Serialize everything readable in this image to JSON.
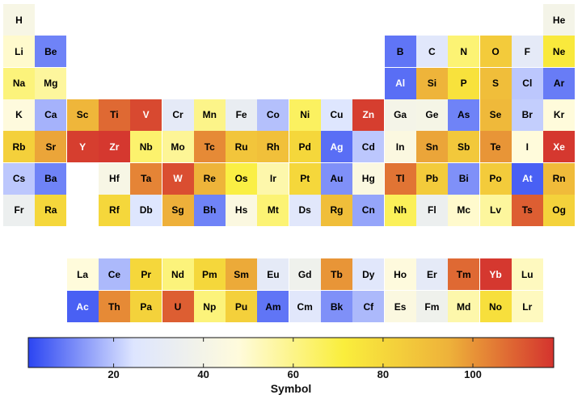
{
  "chart_data": {
    "type": "heatmap",
    "description_note": "",
    "legend_title": "Symbol",
    "colorbar": {
      "ticks": [
        20,
        40,
        60,
        80,
        100
      ],
      "range": [
        1,
        118
      ],
      "colors": [
        "#2b45f2",
        "#dde5ff",
        "#fffbdc",
        "#faee3c",
        "#eeb23a",
        "#d4332e"
      ]
    },
    "elements": [
      {
        "symbol": "H",
        "period": 1,
        "group": 1,
        "value": 42
      },
      {
        "symbol": "He",
        "period": 1,
        "group": 18,
        "value": 40
      },
      {
        "symbol": "Li",
        "period": 2,
        "group": 1,
        "value": 50
      },
      {
        "symbol": "Be",
        "period": 2,
        "group": 2,
        "value": 10
      },
      {
        "symbol": "B",
        "period": 2,
        "group": 13,
        "value": 8
      },
      {
        "symbol": "C",
        "period": 2,
        "group": 14,
        "value": 27
      },
      {
        "symbol": "N",
        "period": 2,
        "group": 15,
        "value": 63
      },
      {
        "symbol": "O",
        "period": 2,
        "group": 16,
        "value": 85
      },
      {
        "symbol": "F",
        "period": 2,
        "group": 17,
        "value": 30
      },
      {
        "symbol": "Ne",
        "period": 2,
        "group": 18,
        "value": 73
      },
      {
        "symbol": "Na",
        "period": 3,
        "group": 1,
        "value": 62
      },
      {
        "symbol": "Mg",
        "period": 3,
        "group": 2,
        "value": 57
      },
      {
        "symbol": "Al",
        "period": 3,
        "group": 13,
        "value": 7
      },
      {
        "symbol": "Si",
        "period": 3,
        "group": 14,
        "value": 94
      },
      {
        "symbol": "P",
        "period": 3,
        "group": 15,
        "value": 76
      },
      {
        "symbol": "S",
        "period": 3,
        "group": 16,
        "value": 90
      },
      {
        "symbol": "Cl",
        "period": 3,
        "group": 17,
        "value": 20
      },
      {
        "symbol": "Ar",
        "period": 3,
        "group": 18,
        "value": 9
      },
      {
        "symbol": "K",
        "period": 4,
        "group": 1,
        "value": 47
      },
      {
        "symbol": "Ca",
        "period": 4,
        "group": 2,
        "value": 17
      },
      {
        "symbol": "Sc",
        "period": 4,
        "group": 3,
        "value": 93
      },
      {
        "symbol": "Ti",
        "period": 4,
        "group": 4,
        "value": 108
      },
      {
        "symbol": "V",
        "period": 4,
        "group": 5,
        "value": 114
      },
      {
        "symbol": "Cr",
        "period": 4,
        "group": 6,
        "value": 30
      },
      {
        "symbol": "Mn",
        "period": 4,
        "group": 7,
        "value": 60
      },
      {
        "symbol": "Fe",
        "period": 4,
        "group": 8,
        "value": 33
      },
      {
        "symbol": "Co",
        "period": 4,
        "group": 9,
        "value": 19
      },
      {
        "symbol": "Ni",
        "period": 4,
        "group": 10,
        "value": 66
      },
      {
        "symbol": "Cu",
        "period": 4,
        "group": 11,
        "value": 25
      },
      {
        "symbol": "Zn",
        "period": 4,
        "group": 12,
        "value": 116
      },
      {
        "symbol": "Ga",
        "period": 4,
        "group": 13,
        "value": 40
      },
      {
        "symbol": "Ge",
        "period": 4,
        "group": 14,
        "value": 41
      },
      {
        "symbol": "As",
        "period": 4,
        "group": 15,
        "value": 10
      },
      {
        "symbol": "Se",
        "period": 4,
        "group": 16,
        "value": 92
      },
      {
        "symbol": "Br",
        "period": 4,
        "group": 17,
        "value": 21
      },
      {
        "symbol": "Kr",
        "period": 4,
        "group": 18,
        "value": 48
      },
      {
        "symbol": "Rb",
        "period": 5,
        "group": 1,
        "value": 83
      },
      {
        "symbol": "Sr",
        "period": 5,
        "group": 2,
        "value": 97
      },
      {
        "symbol": "Y",
        "period": 5,
        "group": 3,
        "value": 116
      },
      {
        "symbol": "Zr",
        "period": 5,
        "group": 4,
        "value": 117
      },
      {
        "symbol": "Nb",
        "period": 5,
        "group": 5,
        "value": 64
      },
      {
        "symbol": "Mo",
        "period": 5,
        "group": 6,
        "value": 58
      },
      {
        "symbol": "Tc",
        "period": 5,
        "group": 7,
        "value": 102
      },
      {
        "symbol": "Ru",
        "period": 5,
        "group": 8,
        "value": 87
      },
      {
        "symbol": "Rh",
        "period": 5,
        "group": 9,
        "value": 89
      },
      {
        "symbol": "Pd",
        "period": 5,
        "group": 10,
        "value": 80
      },
      {
        "symbol": "Ag",
        "period": 5,
        "group": 11,
        "value": 7
      },
      {
        "symbol": "Cd",
        "period": 5,
        "group": 12,
        "value": 20
      },
      {
        "symbol": "In",
        "period": 5,
        "group": 13,
        "value": 45
      },
      {
        "symbol": "Sn",
        "period": 5,
        "group": 14,
        "value": 97
      },
      {
        "symbol": "Sb",
        "period": 5,
        "group": 15,
        "value": 86
      },
      {
        "symbol": "Te",
        "period": 5,
        "group": 16,
        "value": 100
      },
      {
        "symbol": "I",
        "period": 5,
        "group": 17,
        "value": 48
      },
      {
        "symbol": "Xe",
        "period": 5,
        "group": 18,
        "value": 117
      },
      {
        "symbol": "Cs",
        "period": 6,
        "group": 1,
        "value": 20
      },
      {
        "symbol": "Ba",
        "period": 6,
        "group": 2,
        "value": 10
      },
      {
        "symbol": "Hf",
        "period": 6,
        "group": 4,
        "value": 42
      },
      {
        "symbol": "Ta",
        "period": 6,
        "group": 5,
        "value": 103
      },
      {
        "symbol": "W",
        "period": 6,
        "group": 6,
        "value": 113
      },
      {
        "symbol": "Re",
        "period": 6,
        "group": 7,
        "value": 94
      },
      {
        "symbol": "Os",
        "period": 6,
        "group": 8,
        "value": 70
      },
      {
        "symbol": "Ir",
        "period": 6,
        "group": 9,
        "value": 55
      },
      {
        "symbol": "Pt",
        "period": 6,
        "group": 10,
        "value": 80
      },
      {
        "symbol": "Au",
        "period": 6,
        "group": 11,
        "value": 12
      },
      {
        "symbol": "Hg",
        "period": 6,
        "group": 12,
        "value": 45
      },
      {
        "symbol": "Tl",
        "period": 6,
        "group": 13,
        "value": 106
      },
      {
        "symbol": "Pb",
        "period": 6,
        "group": 14,
        "value": 85
      },
      {
        "symbol": "Bi",
        "period": 6,
        "group": 15,
        "value": 12
      },
      {
        "symbol": "Po",
        "period": 6,
        "group": 16,
        "value": 85
      },
      {
        "symbol": "At",
        "period": 6,
        "group": 17,
        "value": 5
      },
      {
        "symbol": "Rn",
        "period": 6,
        "group": 18,
        "value": 91
      },
      {
        "symbol": "Fr",
        "period": 7,
        "group": 1,
        "value": 35
      },
      {
        "symbol": "Ra",
        "period": 7,
        "group": 2,
        "value": 80
      },
      {
        "symbol": "Rf",
        "period": 7,
        "group": 4,
        "value": 80
      },
      {
        "symbol": "Db",
        "period": 7,
        "group": 5,
        "value": 25
      },
      {
        "symbol": "Sg",
        "period": 7,
        "group": 6,
        "value": 95
      },
      {
        "symbol": "Bh",
        "period": 7,
        "group": 7,
        "value": 10
      },
      {
        "symbol": "Hs",
        "period": 7,
        "group": 8,
        "value": 45
      },
      {
        "symbol": "Mt",
        "period": 7,
        "group": 9,
        "value": 63
      },
      {
        "symbol": "Ds",
        "period": 7,
        "group": 10,
        "value": 27
      },
      {
        "symbol": "Rg",
        "period": 7,
        "group": 11,
        "value": 90
      },
      {
        "symbol": "Cn",
        "period": 7,
        "group": 12,
        "value": 15
      },
      {
        "symbol": "Nh",
        "period": 7,
        "group": 13,
        "value": 67
      },
      {
        "symbol": "Fl",
        "period": 7,
        "group": 14,
        "value": 35
      },
      {
        "symbol": "Mc",
        "period": 7,
        "group": 15,
        "value": 50
      },
      {
        "symbol": "Lv",
        "period": 7,
        "group": 16,
        "value": 57
      },
      {
        "symbol": "Ts",
        "period": 7,
        "group": 17,
        "value": 110
      },
      {
        "symbol": "Og",
        "period": 7,
        "group": 18,
        "value": 82
      },
      {
        "symbol": "La",
        "period": 8,
        "group": 3,
        "value": 48
      },
      {
        "symbol": "Ce",
        "period": 8,
        "group": 4,
        "value": 18
      },
      {
        "symbol": "Pr",
        "period": 8,
        "group": 5,
        "value": 80
      },
      {
        "symbol": "Nd",
        "period": 8,
        "group": 6,
        "value": 62
      },
      {
        "symbol": "Pm",
        "period": 8,
        "group": 7,
        "value": 80
      },
      {
        "symbol": "Sm",
        "period": 8,
        "group": 8,
        "value": 96
      },
      {
        "symbol": "Eu",
        "period": 8,
        "group": 9,
        "value": 30
      },
      {
        "symbol": "Gd",
        "period": 8,
        "group": 10,
        "value": 37
      },
      {
        "symbol": "Tb",
        "period": 8,
        "group": 11,
        "value": 100
      },
      {
        "symbol": "Dy",
        "period": 8,
        "group": 12,
        "value": 27
      },
      {
        "symbol": "Ho",
        "period": 8,
        "group": 13,
        "value": 47
      },
      {
        "symbol": "Er",
        "period": 8,
        "group": 14,
        "value": 30
      },
      {
        "symbol": "Tm",
        "period": 8,
        "group": 15,
        "value": 108
      },
      {
        "symbol": "Yb",
        "period": 8,
        "group": 16,
        "value": 117
      },
      {
        "symbol": "Lu",
        "period": 8,
        "group": 17,
        "value": 52
      },
      {
        "symbol": "Ac",
        "period": 9,
        "group": 3,
        "value": 5
      },
      {
        "symbol": "Th",
        "period": 9,
        "group": 4,
        "value": 102
      },
      {
        "symbol": "Pa",
        "period": 9,
        "group": 5,
        "value": 82
      },
      {
        "symbol": "U",
        "period": 9,
        "group": 6,
        "value": 110
      },
      {
        "symbol": "Np",
        "period": 9,
        "group": 7,
        "value": 62
      },
      {
        "symbol": "Pu",
        "period": 9,
        "group": 8,
        "value": 83
      },
      {
        "symbol": "Am",
        "period": 9,
        "group": 9,
        "value": 8
      },
      {
        "symbol": "Cm",
        "period": 9,
        "group": 10,
        "value": 27
      },
      {
        "symbol": "Bk",
        "period": 9,
        "group": 11,
        "value": 12
      },
      {
        "symbol": "Cf",
        "period": 9,
        "group": 12,
        "value": 18
      },
      {
        "symbol": "Es",
        "period": 9,
        "group": 13,
        "value": 45
      },
      {
        "symbol": "Fm",
        "period": 9,
        "group": 14,
        "value": 37
      },
      {
        "symbol": "Md",
        "period": 9,
        "group": 15,
        "value": 55
      },
      {
        "symbol": "No",
        "period": 9,
        "group": 16,
        "value": 77
      },
      {
        "symbol": "Lr",
        "period": 9,
        "group": 17,
        "value": 52
      }
    ]
  }
}
